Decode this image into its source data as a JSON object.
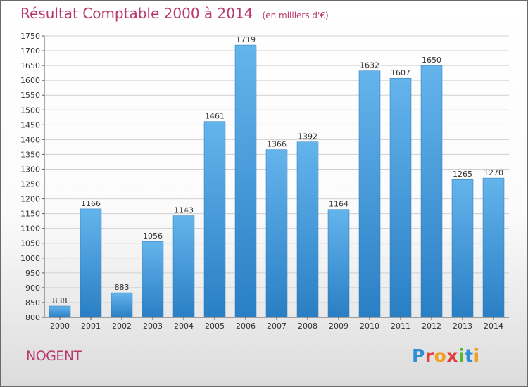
{
  "chart_data": {
    "type": "bar",
    "title": "Résultat Comptable 2000 à 2014",
    "subtitle": "(en milliers d'€)",
    "categories": [
      "2000",
      "2001",
      "2002",
      "2003",
      "2004",
      "2005",
      "2006",
      "2007",
      "2008",
      "2009",
      "2010",
      "2011",
      "2012",
      "2013",
      "2014"
    ],
    "values": [
      838,
      1166,
      883,
      1056,
      1143,
      1461,
      1719,
      1366,
      1392,
      1164,
      1632,
      1607,
      1650,
      1265,
      1270
    ],
    "ylim": [
      800,
      1750
    ],
    "ytick_step": 50,
    "grid": true,
    "legend": "none",
    "bar_color_light": "#64b4ec",
    "bar_color_dark": "#2a7fc4"
  },
  "footer": {
    "location": "NOGENT",
    "logo": "Proxiti"
  },
  "colors": {
    "title": "#b8386b",
    "grid": "#d0d0d0",
    "axis": "#555555"
  }
}
